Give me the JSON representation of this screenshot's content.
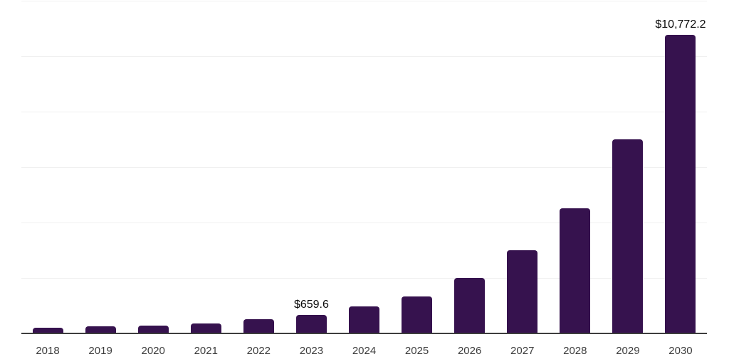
{
  "chart_data": {
    "type": "bar",
    "title": "",
    "xlabel": "",
    "ylabel": "",
    "categories": [
      "2018",
      "2019",
      "2020",
      "2021",
      "2022",
      "2023",
      "2024",
      "2025",
      "2026",
      "2027",
      "2028",
      "2029",
      "2030"
    ],
    "values": [
      200,
      250,
      290,
      350,
      505,
      659.6,
      975,
      1330,
      2005,
      2995,
      4520,
      7000,
      10772.2
    ],
    "point_labels": {
      "2023": "$659.6",
      "2030": "$10,772.2"
    },
    "ylim": [
      0,
      12000
    ],
    "gridline_step": 2000,
    "grid": true,
    "legend": "none",
    "value_unit": "USD"
  },
  "colors": {
    "bar": "#36124e",
    "axis_line": "#3d3d3d",
    "tick_label": "#3d3d3d",
    "value_label": "#0a0a0a",
    "gridline": "#f0f0f0",
    "background": "#ffffff"
  }
}
